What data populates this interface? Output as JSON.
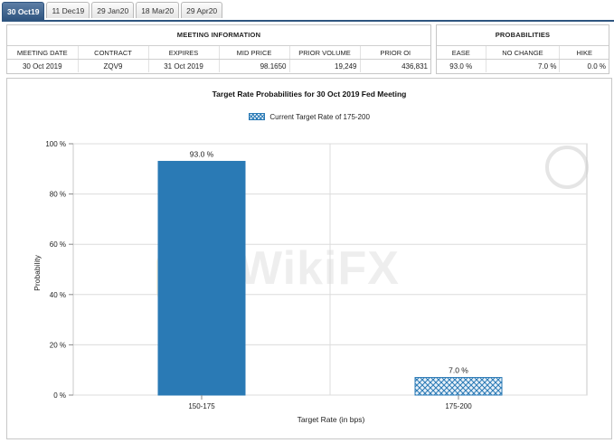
{
  "tabs": [
    {
      "label": "30 Oct19",
      "active": true
    },
    {
      "label": "11 Dec19",
      "active": false
    },
    {
      "label": "29 Jan20",
      "active": false
    },
    {
      "label": "18 Mar20",
      "active": false
    },
    {
      "label": "29 Apr20",
      "active": false
    }
  ],
  "meeting_info": {
    "heading": "MEETING INFORMATION",
    "columns": [
      "MEETING DATE",
      "CONTRACT",
      "EXPIRES",
      "MID PRICE",
      "PRIOR VOLUME",
      "PRIOR OI"
    ],
    "row": [
      "30 Oct 2019",
      "ZQV9",
      "31 Oct 2019",
      "98.1650",
      "19,249",
      "436,831"
    ]
  },
  "probabilities": {
    "heading": "PROBABILITIES",
    "columns": [
      "EASE",
      "NO CHANGE",
      "HIKE"
    ],
    "row": [
      "93.0 %",
      "7.0 %",
      "0.0 %"
    ]
  },
  "watermark": {
    "text": "WikiFX"
  },
  "colors": {
    "bar": "#2a7ab5",
    "tab_active": "#2f5580"
  },
  "chart_data": {
    "type": "bar",
    "title": "Target Rate Probabilities for 30 Oct 2019 Fed Meeting",
    "legend": "Current Target Rate of 175-200",
    "legend_placement": "top-center",
    "categories": [
      "150-175",
      "175-200"
    ],
    "values": [
      93.0,
      7.0
    ],
    "data_labels": [
      "93.0 %",
      "7.0 %"
    ],
    "highlighted_category": "175-200",
    "xlabel": "Target Rate (in bps)",
    "ylabel": "Probability",
    "ylim": [
      0,
      100
    ],
    "yticks": [
      "0 %",
      "20 %",
      "40 %",
      "60 %",
      "80 %",
      "100 %"
    ],
    "grid": true
  }
}
